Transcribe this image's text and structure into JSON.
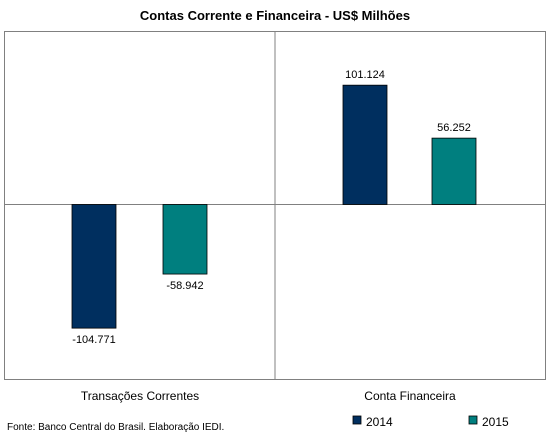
{
  "chart_data": {
    "type": "bar",
    "title": "Contas Corrente e Financeira - US$ Milhões",
    "categories": [
      "Transações Correntes",
      "Conta Financeira"
    ],
    "series": [
      {
        "name": "2014",
        "values": [
          -104771,
          101124
        ],
        "labels": [
          "-104.771",
          "101.124"
        ],
        "color": "#002f5f"
      },
      {
        "name": "2015",
        "values": [
          -58942,
          56252
        ],
        "labels": [
          "-58.942",
          "56.252"
        ],
        "color": "#007f7f"
      }
    ],
    "ylim": [
      -150000,
      150000
    ],
    "grid": false,
    "legend_position": "bottom-right",
    "xlabel": "",
    "ylabel": ""
  },
  "source": "Fonte: Banco Central do Brasil. Elaboração IEDI."
}
